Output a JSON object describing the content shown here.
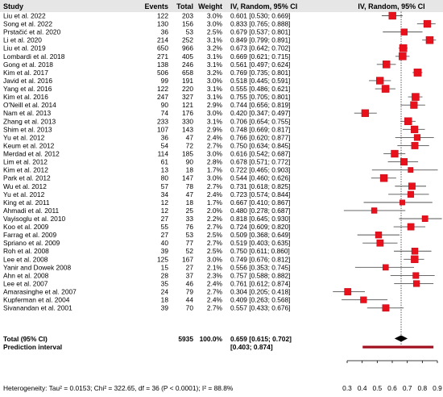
{
  "chart_data": {
    "type": "forest",
    "headers": {
      "study": "Study",
      "events": "Events",
      "total": "Total",
      "weight": "Weight",
      "ci_text": "IV, Random, 95% CI",
      "ci_plot": "IV, Random, 95% CI"
    },
    "studies": [
      {
        "name": "Liu et al. 2022",
        "events": 122,
        "total": 203,
        "weight": "3.0%",
        "est": 0.601,
        "lo": 0.53,
        "hi": 0.669
      },
      {
        "name": "Song et al. 2022",
        "events": 130,
        "total": 156,
        "weight": "3.0%",
        "est": 0.833,
        "lo": 0.765,
        "hi": 0.888
      },
      {
        "name": "Prstačić et al. 2020",
        "events": 36,
        "total": 53,
        "weight": "2.5%",
        "est": 0.679,
        "lo": 0.537,
        "hi": 0.801
      },
      {
        "name": "Li et al. 2020",
        "events": 214,
        "total": 252,
        "weight": "3.1%",
        "est": 0.849,
        "lo": 0.799,
        "hi": 0.891
      },
      {
        "name": "Liu et al. 2019",
        "events": 650,
        "total": 966,
        "weight": "3.2%",
        "est": 0.673,
        "lo": 0.642,
        "hi": 0.702
      },
      {
        "name": "Lombardi et al. 2018",
        "events": 271,
        "total": 405,
        "weight": "3.1%",
        "est": 0.669,
        "lo": 0.621,
        "hi": 0.715
      },
      {
        "name": "Gong et al. 2018",
        "events": 138,
        "total": 246,
        "weight": "3.1%",
        "est": 0.561,
        "lo": 0.497,
        "hi": 0.624
      },
      {
        "name": "Kim et al. 2017",
        "events": 506,
        "total": 658,
        "weight": "3.2%",
        "est": 0.769,
        "lo": 0.735,
        "hi": 0.801
      },
      {
        "name": "Javid et al. 2016",
        "events": 99,
        "total": 191,
        "weight": "3.0%",
        "est": 0.518,
        "lo": 0.445,
        "hi": 0.591
      },
      {
        "name": "Yang et al. 2016",
        "events": 122,
        "total": 220,
        "weight": "3.1%",
        "est": 0.555,
        "lo": 0.486,
        "hi": 0.621
      },
      {
        "name": "Kim et al. 2016",
        "events": 247,
        "total": 327,
        "weight": "3.1%",
        "est": 0.755,
        "lo": 0.705,
        "hi": 0.801
      },
      {
        "name": "O'Neill et al. 2014",
        "events": 90,
        "total": 121,
        "weight": "2.9%",
        "est": 0.744,
        "lo": 0.656,
        "hi": 0.819
      },
      {
        "name": "Nam et al. 2013",
        "events": 74,
        "total": 176,
        "weight": "3.0%",
        "est": 0.42,
        "lo": 0.347,
        "hi": 0.497
      },
      {
        "name": "Zhang et al. 2013",
        "events": 233,
        "total": 330,
        "weight": "3.1%",
        "est": 0.706,
        "lo": 0.654,
        "hi": 0.755
      },
      {
        "name": "Shim et al. 2013",
        "events": 107,
        "total": 143,
        "weight": "2.9%",
        "est": 0.748,
        "lo": 0.669,
        "hi": 0.817
      },
      {
        "name": "Yu et al. 2012",
        "events": 36,
        "total": 47,
        "weight": "2.4%",
        "est": 0.766,
        "lo": 0.62,
        "hi": 0.877
      },
      {
        "name": "Keum et al. 2012",
        "events": 54,
        "total": 72,
        "weight": "2.7%",
        "est": 0.75,
        "lo": 0.634,
        "hi": 0.845
      },
      {
        "name": "Merdad et al. 2012",
        "events": 114,
        "total": 185,
        "weight": "3.0%",
        "est": 0.616,
        "lo": 0.542,
        "hi": 0.687
      },
      {
        "name": "Lim et al. 2012",
        "events": 61,
        "total": 90,
        "weight": "2.8%",
        "est": 0.678,
        "lo": 0.571,
        "hi": 0.772
      },
      {
        "name": "Kim et al. 2012",
        "events": 13,
        "total": 18,
        "weight": "1.7%",
        "est": 0.722,
        "lo": 0.465,
        "hi": 0.903
      },
      {
        "name": "Park et al. 2012",
        "events": 80,
        "total": 147,
        "weight": "3.0%",
        "est": 0.544,
        "lo": 0.46,
        "hi": 0.626
      },
      {
        "name": "Wu et al. 2012",
        "events": 57,
        "total": 78,
        "weight": "2.7%",
        "est": 0.731,
        "lo": 0.618,
        "hi": 0.825
      },
      {
        "name": "Yu et al. 2012",
        "events": 34,
        "total": 47,
        "weight": "2.4%",
        "est": 0.723,
        "lo": 0.574,
        "hi": 0.844
      },
      {
        "name": "King et al. 2011",
        "events": 12,
        "total": 18,
        "weight": "1.7%",
        "est": 0.667,
        "lo": 0.41,
        "hi": 0.867
      },
      {
        "name": "Ahmadi et al. 2011",
        "events": 12,
        "total": 25,
        "weight": "2.0%",
        "est": 0.48,
        "lo": 0.278,
        "hi": 0.687
      },
      {
        "name": "Vayisoglu et al. 2010",
        "events": 27,
        "total": 33,
        "weight": "2.2%",
        "est": 0.818,
        "lo": 0.645,
        "hi": 0.93
      },
      {
        "name": "Koo et al. 2009",
        "events": 55,
        "total": 76,
        "weight": "2.7%",
        "est": 0.724,
        "lo": 0.609,
        "hi": 0.82
      },
      {
        "name": "Farrag et al. 2009",
        "events": 27,
        "total": 53,
        "weight": "2.5%",
        "est": 0.509,
        "lo": 0.368,
        "hi": 0.649
      },
      {
        "name": "Spriano et al. 2009",
        "events": 40,
        "total": 77,
        "weight": "2.7%",
        "est": 0.519,
        "lo": 0.403,
        "hi": 0.635
      },
      {
        "name": "Roh et al. 2008",
        "events": 39,
        "total": 52,
        "weight": "2.5%",
        "est": 0.75,
        "lo": 0.611,
        "hi": 0.86
      },
      {
        "name": "Lee et al. 2008",
        "events": 125,
        "total": 167,
        "weight": "3.0%",
        "est": 0.749,
        "lo": 0.676,
        "hi": 0.812
      },
      {
        "name": "Yanir and Dowek 2008",
        "events": 15,
        "total": 27,
        "weight": "2.1%",
        "est": 0.556,
        "lo": 0.353,
        "hi": 0.745
      },
      {
        "name": "Ahn et al. 2008",
        "events": 28,
        "total": 37,
        "weight": "2.3%",
        "est": 0.757,
        "lo": 0.588,
        "hi": 0.882
      },
      {
        "name": "Lee et al. 2007",
        "events": 35,
        "total": 46,
        "weight": "2.4%",
        "est": 0.761,
        "lo": 0.612,
        "hi": 0.874
      },
      {
        "name": "Amarasinghe et al. 2007",
        "events": 24,
        "total": 79,
        "weight": "2.7%",
        "est": 0.304,
        "lo": 0.205,
        "hi": 0.418
      },
      {
        "name": "Kupferman et al. 2004",
        "events": 18,
        "total": 44,
        "weight": "2.4%",
        "est": 0.409,
        "lo": 0.263,
        "hi": 0.568
      },
      {
        "name": "Sivanandan et al. 2001",
        "events": 39,
        "total": 70,
        "weight": "2.7%",
        "est": 0.557,
        "lo": 0.433,
        "hi": 0.676
      }
    ],
    "summary": {
      "label": "Total (95% CI)",
      "total": "5935",
      "weight": "100.0%",
      "est": 0.659,
      "lo": 0.615,
      "hi": 0.702,
      "ci_text": "0.659 [0.615; 0.702]"
    },
    "prediction_interval": {
      "label": "Prediction interval",
      "lo": 0.403,
      "hi": 0.874,
      "ci_text": "[0.403; 0.874]"
    },
    "heterogeneity": "Heterogeneity: Tau² = 0.0153; Chi² = 322.65, df = 36 (P < 0.0001); I² = 88.8%",
    "x_axis": {
      "min": 0.3,
      "max": 0.9,
      "ticks": [
        0.3,
        0.4,
        0.5,
        0.6,
        0.7,
        0.8,
        0.9
      ],
      "tick_labels": [
        "0.3",
        "0.4",
        "0.5",
        "0.6",
        "0.7",
        "0.8",
        "0.9"
      ]
    },
    "reference_line": 0.659,
    "grid": false,
    "colors": {
      "square": "#e8101b",
      "square_edge": "#b00010",
      "ci_line": "#555555",
      "diamond": "#000000",
      "prediction_bar": "#a00f1e",
      "reference_line": "#333333"
    }
  }
}
